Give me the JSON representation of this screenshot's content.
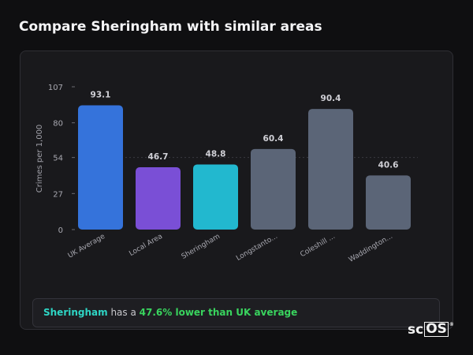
{
  "header": {
    "title": "Compare Sheringham with similar areas"
  },
  "summary": {
    "area": "Sheringham",
    "middle": " has a ",
    "comparison": "47.6% lower than UK average"
  },
  "logo": {
    "main": "sc",
    "boxed": "OS",
    "mark": "®"
  },
  "colors": {
    "uk": "#3573db",
    "local": "#7a4fd6",
    "area": "#22b8cf",
    "similar": "#5b6577",
    "highlight_text": "#2ed6c5",
    "comparison_text": "#39d45e"
  },
  "chart_data": {
    "type": "bar",
    "ylabel": "Crimes per 1,000",
    "ylim": [
      0,
      107
    ],
    "yticks": [
      0,
      27,
      54,
      80,
      107
    ],
    "reference_line": 54,
    "grid": false,
    "categories": [
      "UK Average",
      "Local Area",
      "Sheringham",
      "Longstanto...",
      "Coleshill ...",
      "Waddington..."
    ],
    "values": [
      93.1,
      46.7,
      48.8,
      60.4,
      90.4,
      40.6
    ],
    "value_labels": [
      "93.1",
      "46.7",
      "48.8",
      "60.4",
      "90.4",
      "40.6"
    ],
    "bar_colors": [
      "#3573db",
      "#7a4fd6",
      "#22b8cf",
      "#5b6577",
      "#5b6577",
      "#5b6577"
    ]
  }
}
